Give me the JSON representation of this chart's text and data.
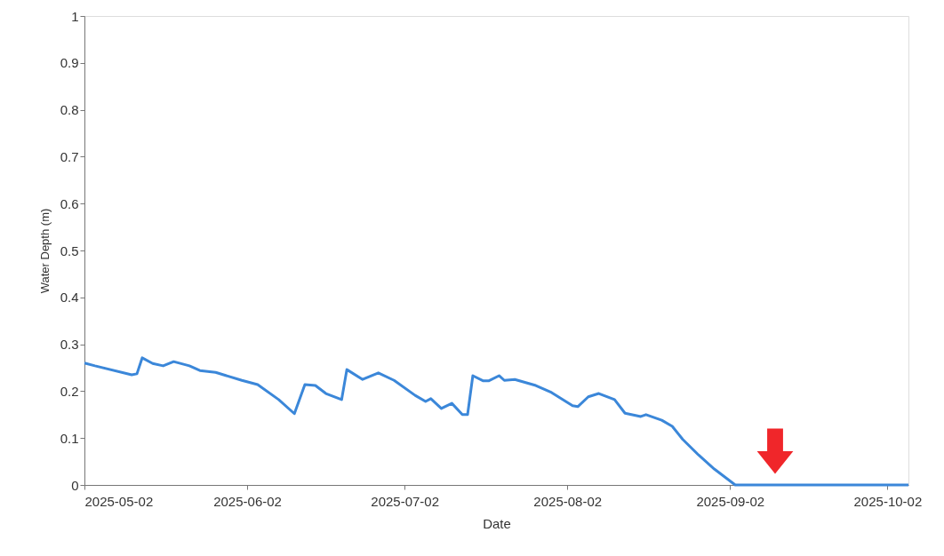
{
  "chart_data": {
    "type": "line",
    "xlabel": "Date",
    "ylabel": "Water Depth (m)",
    "x": [
      "2025-05-02",
      "2025-05-04",
      "2025-05-11",
      "2025-05-12",
      "2025-05-13",
      "2025-05-15",
      "2025-05-17",
      "2025-05-19",
      "2025-05-22",
      "2025-05-24",
      "2025-05-27",
      "2025-06-01",
      "2025-06-04",
      "2025-06-08",
      "2025-06-11",
      "2025-06-13",
      "2025-06-15",
      "2025-06-17",
      "2025-06-20",
      "2025-06-21",
      "2025-06-24",
      "2025-06-27",
      "2025-06-30",
      "2025-07-04",
      "2025-07-06",
      "2025-07-07",
      "2025-07-09",
      "2025-07-11",
      "2025-07-13",
      "2025-07-14",
      "2025-07-15",
      "2025-07-17",
      "2025-07-18",
      "2025-07-20",
      "2025-07-21",
      "2025-07-23",
      "2025-07-27",
      "2025-07-30",
      "2025-08-03",
      "2025-08-04",
      "2025-08-06",
      "2025-08-08",
      "2025-08-11",
      "2025-08-13",
      "2025-08-16",
      "2025-08-17",
      "2025-08-20",
      "2025-08-22",
      "2025-08-24",
      "2025-08-27",
      "2025-08-30",
      "2025-09-03",
      "2025-10-06"
    ],
    "series": [
      {
        "color": "#3b87d9",
        "values": [
          0.26,
          0.254,
          0.235,
          0.237,
          0.271,
          0.259,
          0.254,
          0.263,
          0.254,
          0.244,
          0.24,
          0.223,
          0.214,
          0.182,
          0.152,
          0.214,
          0.212,
          0.195,
          0.182,
          0.246,
          0.225,
          0.239,
          0.223,
          0.191,
          0.178,
          0.184,
          0.163,
          0.174,
          0.15,
          0.15,
          0.233,
          0.222,
          0.222,
          0.233,
          0.223,
          0.225,
          0.212,
          0.197,
          0.169,
          0.167,
          0.188,
          0.195,
          0.182,
          0.153,
          0.146,
          0.15,
          0.138,
          0.125,
          0.097,
          0.064,
          0.034,
          0,
          0
        ]
      }
    ],
    "xlim": [
      "2025-05-02",
      "2025-10-06"
    ],
    "xticks": [
      "2025-05-02",
      "2025-06-02",
      "2025-07-02",
      "2025-08-02",
      "2025-09-02",
      "2025-10-02"
    ],
    "ylim": [
      0,
      1
    ],
    "yticks": [
      0,
      0.1,
      0.2,
      0.3,
      0.4,
      0.5,
      0.6,
      0.7,
      0.8,
      0.9,
      1
    ],
    "grid": false,
    "marker": "none",
    "line_style": "solid"
  }
}
